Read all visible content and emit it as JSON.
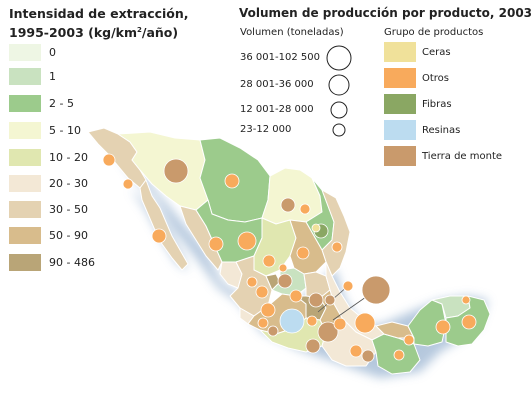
{
  "intensity_legend": {
    "title_line1": "Intensidad de extracción,",
    "title_line2_prefix": "1995-2003 (kg/km",
    "title_line2_sup": "2",
    "title_line2_suffix": "/año)",
    "classes": [
      {
        "label": "0",
        "color": "#eef6e4"
      },
      {
        "label": "1",
        "color": "#c9e2c0"
      },
      {
        "label": "2 - 5",
        "color": "#9ccb8c"
      },
      {
        "label": "5 - 10",
        "color": "#f4f6d2"
      },
      {
        "label": "10 - 20",
        "color": "#e0e7b0"
      },
      {
        "label": "20 - 30",
        "color": "#f3e8d6"
      },
      {
        "label": "30 - 50",
        "color": "#e4d2b2"
      },
      {
        "label": "50 - 90",
        "color": "#d8bc8c"
      },
      {
        "label": "90 - 486",
        "color": "#b9a577"
      }
    ]
  },
  "volume_legend": {
    "title": "Volumen de producción por producto, 2003",
    "subtitle": "Volumen (toneladas)",
    "sizes": [
      {
        "label": "36 001-102 500"
      },
      {
        "label": "28 001-36 000"
      },
      {
        "label": "12 001-28 000"
      },
      {
        "label": "23-12 000"
      }
    ]
  },
  "group_legend": {
    "title": "Grupo de productos",
    "items": [
      {
        "label": "Ceras",
        "color": "#f0e19a"
      },
      {
        "label": "Otros",
        "color": "#f8aa5c"
      },
      {
        "label": "Fibras",
        "color": "#8aa763"
      },
      {
        "label": "Resinas",
        "color": "#bcdcf0"
      },
      {
        "label": "Tierra de monte",
        "color": "#c99a6c"
      }
    ]
  },
  "colors": {
    "coast_shadow": "#a9bfd8",
    "border": "#ffffff"
  }
}
